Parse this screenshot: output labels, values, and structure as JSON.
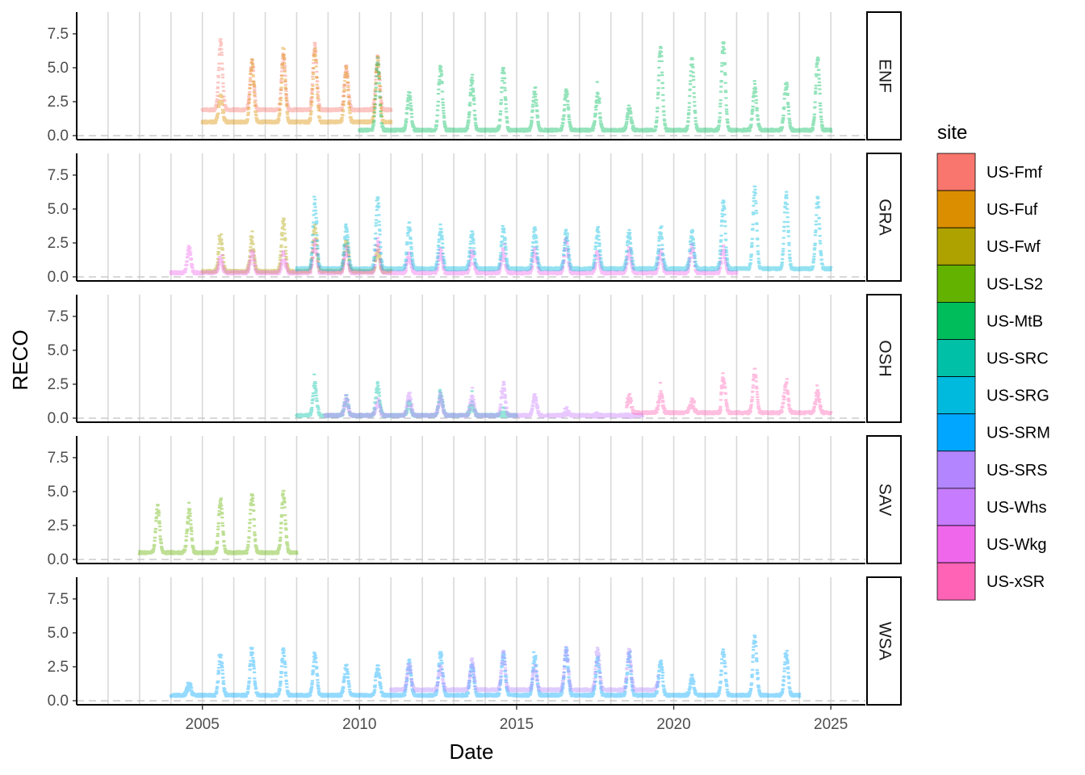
{
  "chart_data": {
    "type": "scatter",
    "title": "",
    "xlabel": "Date",
    "ylabel": "RECO",
    "xlim": [
      2001.0,
      2026.1
    ],
    "ylim": [
      -0.3,
      9.1
    ],
    "x_ticks": [
      "2005",
      "2010",
      "2015",
      "2020",
      "2025"
    ],
    "x_tick_values": [
      2005,
      2010,
      2015,
      2020,
      2025
    ],
    "y_ticks": [
      "0.0",
      "2.5",
      "5.0",
      "7.5"
    ],
    "y_tick_values": [
      0,
      2.5,
      5,
      7.5
    ],
    "grid": "vertical lines at each year",
    "reference_line": {
      "y": 0,
      "style": "dashed"
    },
    "legend": {
      "title": "site",
      "placement": "right",
      "entries": [
        {
          "name": "US-Fmf",
          "color": "#F8766D"
        },
        {
          "name": "US-Fuf",
          "color": "#DB8E00"
        },
        {
          "name": "US-Fwf",
          "color": "#AEA200"
        },
        {
          "name": "US-LS2",
          "color": "#64B200"
        },
        {
          "name": "US-MtB",
          "color": "#00BD5C"
        },
        {
          "name": "US-SRC",
          "color": "#00C1A7"
        },
        {
          "name": "US-SRG",
          "color": "#00BADE"
        },
        {
          "name": "US-SRM",
          "color": "#00A6FF"
        },
        {
          "name": "US-SRS",
          "color": "#B385FF"
        },
        {
          "name": "US-Whs",
          "color": "#C77CFF"
        },
        {
          "name": "US-Wkg",
          "color": "#EF67EB"
        },
        {
          "name": "US-xSR",
          "color": "#FF63B6"
        }
      ]
    },
    "facets": [
      {
        "label": "ENF",
        "series": [
          {
            "name": "US-Fmf",
            "start": 2005.0,
            "end": 2011.0,
            "base": 1.9,
            "peaks": [
              6.8,
              5.4,
              5.9,
              6.6,
              5.0,
              5.6
            ]
          },
          {
            "name": "US-Fuf",
            "start": 2005.0,
            "end": 2011.0,
            "base": 1.0,
            "peaks": [
              2.8,
              5.4,
              5.8,
              6.2,
              4.8,
              5.6
            ]
          },
          {
            "name": "US-MtB",
            "start": 2010.0,
            "end": 2025.0,
            "base": 0.4,
            "peaks": [
              5.4,
              3.0,
              5.0,
              4.0,
              4.8,
              3.2,
              3.2,
              3.0,
              2.0,
              6.5,
              5.5,
              6.8,
              3.5,
              3.8,
              5.6
            ]
          }
        ]
      },
      {
        "label": "GRA",
        "series": [
          {
            "name": "US-Fwf",
            "start": 2005.0,
            "end": 2011.0,
            "base": 0.4,
            "peaks": [
              3.0,
              2.8,
              4.0,
              3.6,
              2.8,
              2.0
            ]
          },
          {
            "name": "US-Wkg",
            "start": 2004.0,
            "end": 2022.0,
            "base": 0.3,
            "peaks": [
              2.0,
              1.4,
              1.8,
              1.6,
              2.6,
              2.0,
              2.6,
              1.6,
              1.8,
              1.8,
              1.8,
              2.0,
              2.4,
              1.8,
              2.0,
              1.8,
              2.2,
              2.0
            ]
          },
          {
            "name": "US-SRG",
            "start": 2008.0,
            "end": 2025.0,
            "base": 0.6,
            "peaks": [
              5.4,
              3.6,
              5.6,
              3.8,
              3.6,
              3.2,
              3.6,
              3.4,
              3.2,
              3.4,
              3.2,
              3.4,
              3.2,
              5.4,
              6.4,
              6.0,
              5.6
            ]
          }
        ]
      },
      {
        "label": "OSH",
        "series": [
          {
            "name": "US-SRC",
            "start": 2008.0,
            "end": 2015.0,
            "base": 0.2,
            "peaks": [
              2.4,
              1.4,
              2.4,
              1.0,
              1.8,
              1.0,
              0.4
            ]
          },
          {
            "name": "US-Whs",
            "start": 2008.9,
            "end": 2019.0,
            "base": 0.2,
            "peaks": [
              1.4,
              1.2,
              1.6,
              1.6,
              1.4,
              2.4,
              1.6,
              0.5,
              0.1,
              0.1
            ]
          },
          {
            "name": "US-xSR",
            "start": 2018.5,
            "end": 2025.0,
            "base": 0.4,
            "peaks": [
              1.6,
              1.8,
              1.2,
              3.0,
              3.4,
              2.4,
              1.8
            ]
          }
        ]
      },
      {
        "label": "SAV",
        "series": [
          {
            "name": "US-LS2",
            "start": 2003.0,
            "end": 2008.0,
            "base": 0.5,
            "peaks": [
              3.8,
              3.6,
              4.4,
              4.6,
              4.8
            ]
          }
        ]
      },
      {
        "label": "WSA",
        "series": [
          {
            "name": "US-SRM",
            "start": 2004.0,
            "end": 2024.0,
            "base": 0.4,
            "peaks": [
              1.2,
              3.4,
              3.6,
              3.6,
              3.4,
              2.6,
              2.4,
              2.8,
              3.4,
              2.6,
              3.4,
              3.2,
              3.6,
              3.0,
              3.2,
              2.8,
              1.6,
              3.6,
              4.6,
              3.4
            ]
          },
          {
            "name": "US-SRS",
            "start": 2011.0,
            "end": 2019.5,
            "base": 0.8,
            "peaks": [
              2.6,
              2.4,
              2.8,
              3.4,
              2.4,
              3.8,
              3.6,
              3.6,
              2.8
            ]
          }
        ]
      }
    ]
  }
}
